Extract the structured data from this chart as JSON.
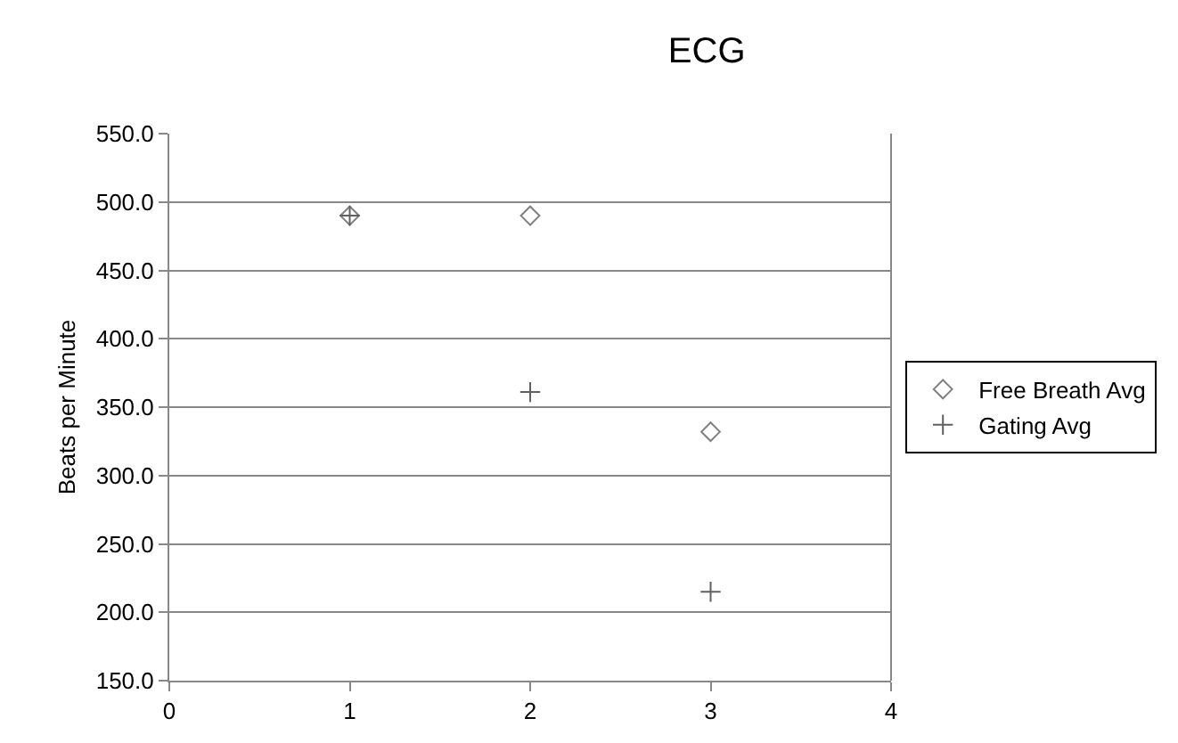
{
  "chart_data": {
    "type": "scatter",
    "title": "ECG",
    "ylabel": "Beats per Minute",
    "x": [
      1,
      2,
      3
    ],
    "series": [
      {
        "name": "Free Breath Avg",
        "color": "#808080",
        "marker": "diamond",
        "values": [
          490,
          490,
          332
        ]
      },
      {
        "name": "Gating Avg",
        "color": "#606060",
        "marker": "cross",
        "values": [
          490,
          361,
          215
        ]
      }
    ],
    "xlim": [
      0,
      4
    ],
    "xticks": [
      0,
      1,
      2,
      3,
      4
    ],
    "ylim": [
      150,
      550
    ],
    "yticks": [
      {
        "value": 150,
        "label": "150.0"
      },
      {
        "value": 200,
        "label": "200.0"
      },
      {
        "value": 250,
        "label": "250.0"
      },
      {
        "value": 300,
        "label": "300.0"
      },
      {
        "value": 350,
        "label": "350.0"
      },
      {
        "value": 400,
        "label": "400.0"
      },
      {
        "value": 450,
        "label": "450.0"
      },
      {
        "value": 500,
        "label": "500.0"
      },
      {
        "value": 550,
        "label": "550.0"
      }
    ],
    "grid": "y",
    "legend": "right"
  }
}
